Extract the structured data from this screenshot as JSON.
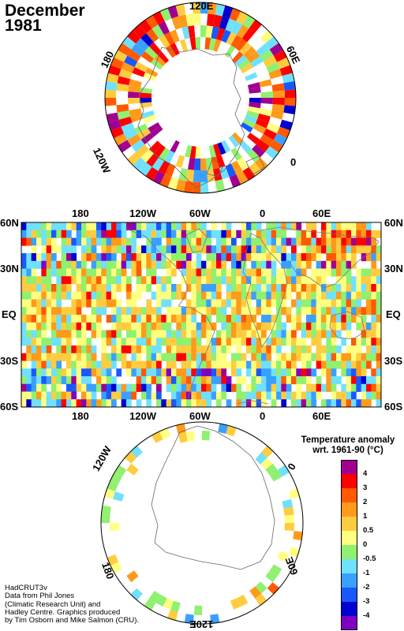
{
  "title": {
    "month": "December",
    "year": "1981"
  },
  "north_polar": {
    "labels": {
      "top": "120E",
      "right": "60E",
      "lower_right": "0",
      "lower_left": "120W",
      "left": "180"
    }
  },
  "equirect": {
    "top_labels": [
      "180",
      "120W",
      "60W",
      "0",
      "60E"
    ],
    "bottom_labels": [
      "180",
      "120W",
      "60W",
      "0",
      "60E"
    ],
    "lat_labels": [
      "60N",
      "30N",
      "EQ",
      "30S",
      "60S"
    ]
  },
  "south_polar": {
    "labels": {
      "upper_left": "120W",
      "upper_right": "0",
      "lower_left": "180",
      "lower_right": "60E",
      "bottom": "120E"
    }
  },
  "legend": {
    "title_line1": "Temperature anomaly",
    "title_line2": "wrt. 1961-90 (°C)",
    "ticks": [
      "4",
      "3",
      "2",
      "1",
      "0.5",
      "0",
      "-0.5",
      "-1",
      "-2",
      "-3",
      "-4"
    ],
    "colors": [
      "#a00090",
      "#ff0000",
      "#ff5a00",
      "#ff9a1a",
      "#ffcc40",
      "#ffff80",
      "#90f070",
      "#70e0ff",
      "#3aa0ff",
      "#1858ff",
      "#0000d0",
      "#8000c0"
    ]
  },
  "credits": [
    "HadCRUT3v",
    "Data from Phil Jones",
    "(Climatic Research Unit) and",
    "Hadley Centre.  Graphics produced",
    "by Tim Osborn and Mike Salmon (CRU)."
  ]
}
